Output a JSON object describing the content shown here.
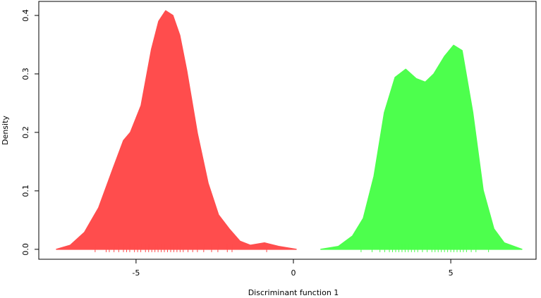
{
  "chart_data": {
    "type": "density",
    "x_label": "Discriminant function 1",
    "y_label": "Density",
    "xlim": [
      -8.09,
      7.71
    ],
    "ylim": [
      -0.017,
      0.424
    ],
    "xticks": [
      -5,
      0,
      5
    ],
    "yticks": [
      {
        "value": 0,
        "label": "0.0"
      },
      {
        "value": 0.1,
        "label": "0.1"
      },
      {
        "value": 0.2,
        "label": "0.2"
      },
      {
        "value": 0.3,
        "label": "0.3"
      },
      {
        "value": 0.4,
        "label": "0.4"
      }
    ],
    "series": [
      {
        "color": "#ff4d4d",
        "x": [
          -7.53,
          -7.09,
          -6.64,
          -6.19,
          -5.74,
          -5.4,
          -5.18,
          -4.84,
          -4.51,
          -4.28,
          -4.06,
          -3.83,
          -3.61,
          -3.39,
          -3.05,
          -2.71,
          -2.38,
          -2.04,
          -1.7,
          -1.37,
          -0.92,
          -0.47,
          0.09
        ],
        "values": [
          0,
          0.007,
          0.029,
          0.071,
          0.137,
          0.186,
          0.2,
          0.246,
          0.342,
          0.39,
          0.408,
          0.4,
          0.366,
          0.306,
          0.198,
          0.113,
          0.059,
          0.035,
          0.014,
          0.007,
          0.011,
          0.005,
          0
        ],
        "rug": [
          -6.3,
          -5.95,
          -5.85,
          -5.7,
          -5.55,
          -5.4,
          -5.3,
          -5.2,
          -5.05,
          -4.95,
          -4.85,
          -4.7,
          -4.6,
          -4.5,
          -4.4,
          -4.3,
          -4.2,
          -4.1,
          -4.0,
          -3.9,
          -3.8,
          -3.7,
          -3.6,
          -3.5,
          -3.35,
          -3.2,
          -3.05,
          -2.85,
          -2.6,
          -2.4,
          -2.1,
          -1.95,
          -0.85
        ]
      },
      {
        "color": "#4dff4d",
        "x": [
          0.87,
          1.43,
          1.88,
          2.22,
          2.56,
          2.89,
          3.23,
          3.57,
          3.9,
          4.19,
          4.46,
          4.8,
          5.09,
          5.36,
          5.7,
          6.03,
          6.37,
          6.7,
          7.26
        ],
        "values": [
          0,
          0.005,
          0.023,
          0.053,
          0.125,
          0.234,
          0.294,
          0.308,
          0.292,
          0.286,
          0.3,
          0.33,
          0.349,
          0.34,
          0.234,
          0.101,
          0.035,
          0.011,
          0
        ],
        "rug": [
          2.15,
          2.5,
          2.75,
          2.9,
          3.05,
          3.15,
          3.25,
          3.35,
          3.45,
          3.55,
          3.65,
          3.75,
          3.85,
          3.95,
          4.1,
          4.25,
          4.4,
          4.5,
          4.6,
          4.7,
          4.8,
          4.9,
          5.0,
          5.1,
          5.2,
          5.3,
          5.4,
          5.5,
          5.65,
          5.8,
          6.2
        ]
      }
    ]
  }
}
